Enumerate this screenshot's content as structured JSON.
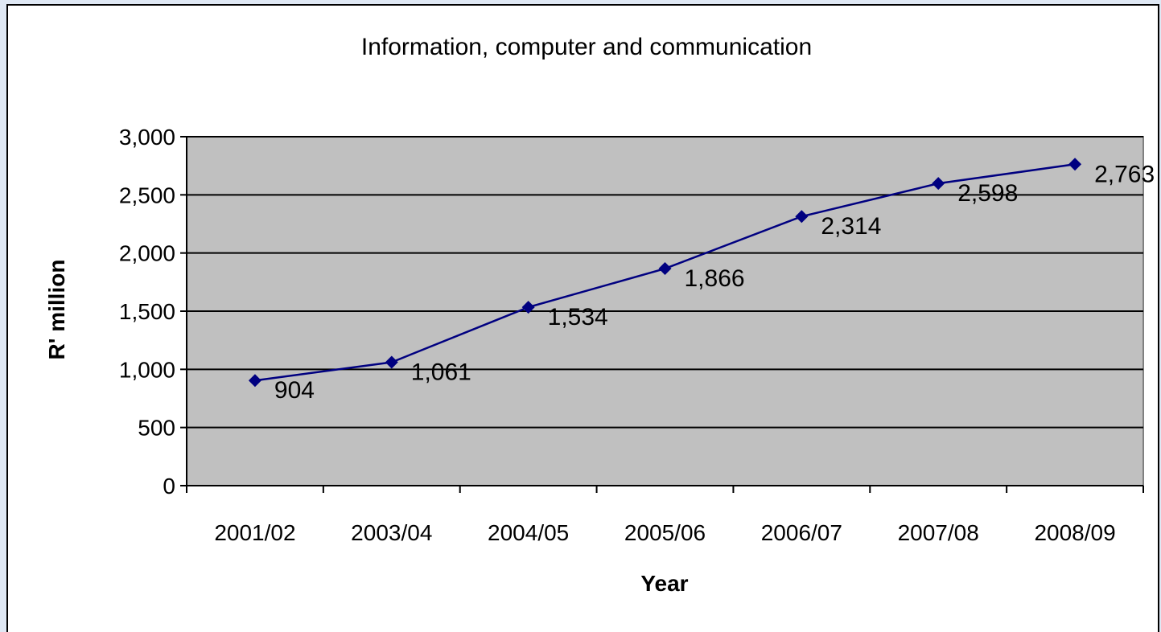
{
  "chart_data": {
    "type": "line",
    "title": "Information, computer and communication",
    "xlabel": "Year",
    "ylabel": "R' million",
    "categories": [
      "2001/02",
      "2003/04",
      "2004/05",
      "2005/06",
      "2006/07",
      "2007/08",
      "2008/09"
    ],
    "series": [
      {
        "values": [
          904,
          1061,
          1534,
          1866,
          2314,
          2598,
          2763
        ],
        "data_labels": [
          "904",
          "1,061",
          "1,534",
          "1,866",
          "2,314",
          "2,598",
          "2,763"
        ],
        "color": "#000080"
      }
    ],
    "ylim": [
      0,
      3000
    ],
    "yticks": [
      0,
      500,
      1000,
      1500,
      2000,
      2500,
      3000
    ],
    "ytick_labels": [
      "0",
      "500",
      "1,000",
      "1,500",
      "2,000",
      "2,500",
      "3,000"
    ],
    "grid": true,
    "plot_background": "#c0c0c0",
    "legend": "none"
  }
}
